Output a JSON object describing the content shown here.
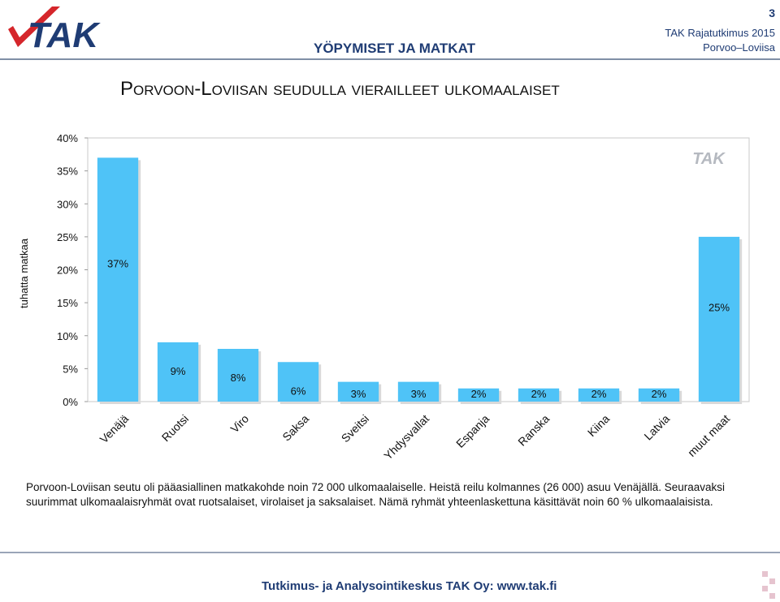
{
  "header": {
    "page_number": "3",
    "section_title": "YÖPYMISET JA MATKAT",
    "report_name": "TAK Rajatutkimus 2015",
    "area": "Porvoo–Loviisa",
    "logo_text": "TAK",
    "brand_color": "#1f3c74",
    "logo_red": "#d5262b"
  },
  "slide_title": "Porvoon-Loviisan seudulla vierailleet ulkomaalaiset",
  "chart_data": {
    "type": "bar",
    "categories": [
      "Venäjä",
      "Ruotsi",
      "Viro",
      "Saksa",
      "Sveitsi",
      "Yhdysvallat",
      "Espanja",
      "Ranska",
      "Kiina",
      "Latvia",
      "muut maat"
    ],
    "values": [
      37,
      9,
      8,
      6,
      3,
      3,
      2,
      2,
      2,
      2,
      25
    ],
    "data_labels": [
      "37%",
      "9%",
      "8%",
      "6%",
      "3%",
      "3%",
      "2%",
      "2%",
      "2%",
      "2%",
      "25%"
    ],
    "ylabel": "tuhatta matkaa",
    "ylim": [
      0,
      40
    ],
    "yticks": [
      "0%",
      "5%",
      "10%",
      "15%",
      "20%",
      "25%",
      "30%",
      "35%",
      "40%"
    ],
    "bar_color": "#4fc3f7",
    "grid": false,
    "watermark": "TAK"
  },
  "body_text": "Porvoon-Loviisan seutu oli pääasiallinen matkakohde noin 72 000 ulkomaalaiselle. Heistä reilu kolmannes (26 000) asuu Venäjällä. Seuraavaksi suurimmat ulkomaalaisryhmät ovat ruotsalaiset, virolaiset ja saksalaiset. Nämä ryhmät yhteenlaskettuna käsittävät noin 60 % ulkomaalaisista.",
  "footer": "Tutkimus- ja Analysointikeskus TAK Oy: www.tak.fi"
}
